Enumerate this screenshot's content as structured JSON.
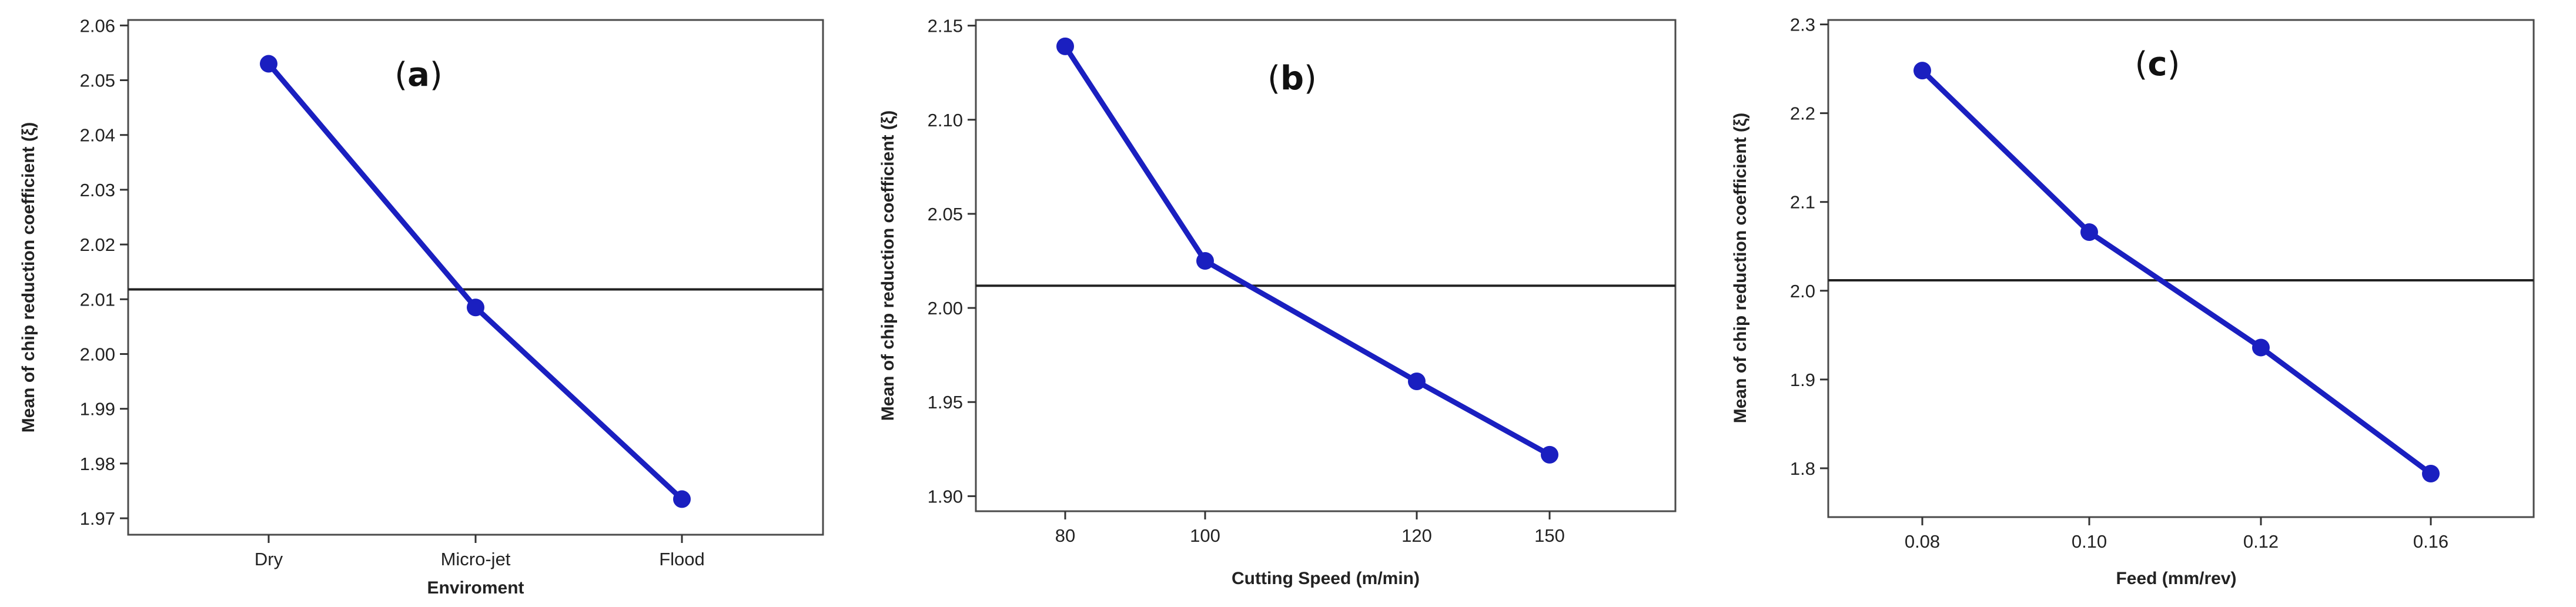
{
  "colors": {
    "series": "#1a1fc0",
    "reference": "#222222"
  },
  "chart_data": [
    {
      "type": "line",
      "panel_label": "a",
      "categories": [
        "Dry",
        "Micro-jet",
        "Flood"
      ],
      "values": [
        2.053,
        2.0085,
        1.9735
      ],
      "reference_line": 2.0118,
      "xlabel": "Enviroment",
      "ylabel": "Mean of chip reduction coefficient (ξ)",
      "ylim": [
        1.967,
        2.061
      ],
      "yticks": [
        "1.97",
        "1.98",
        "1.99",
        "2.00",
        "2.01",
        "2.02",
        "2.03",
        "2.04",
        "2.05",
        "2.06"
      ],
      "ytick_values": [
        1.97,
        1.98,
        1.99,
        2.0,
        2.01,
        2.02,
        2.03,
        2.04,
        2.05,
        2.06
      ]
    },
    {
      "type": "line",
      "panel_label": "b",
      "categories": [
        "80",
        "100",
        "120",
        "150"
      ],
      "values": [
        2.139,
        2.025,
        1.961,
        1.922
      ],
      "reference_line": 2.0118,
      "xlabel": "Cutting Speed (m/min)",
      "ylabel": "Mean of chip reduction coefficient (ξ)",
      "ylim": [
        1.892,
        2.153
      ],
      "yticks": [
        "1.90",
        "1.95",
        "2.00",
        "2.05",
        "2.10",
        "2.15"
      ],
      "ytick_values": [
        1.9,
        1.95,
        2.0,
        2.05,
        2.1,
        2.15
      ]
    },
    {
      "type": "line",
      "panel_label": "c",
      "categories": [
        "0.08",
        "0.10",
        "0.12",
        "0.16"
      ],
      "values": [
        2.248,
        2.066,
        1.936,
        1.794
      ],
      "reference_line": 2.0118,
      "xlabel": "Feed (mm/rev)",
      "ylabel": "Mean of chip reduction coefficient (ξ)",
      "ylim": [
        1.745,
        2.305
      ],
      "yticks": [
        "1.8",
        "1.9",
        "2.0",
        "2.1",
        "2.2",
        "2.3"
      ],
      "ytick_values": [
        1.8,
        1.9,
        2.0,
        2.1,
        2.2,
        2.3
      ]
    }
  ]
}
